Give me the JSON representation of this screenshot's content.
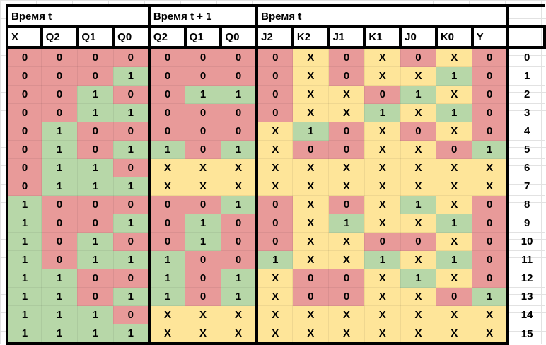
{
  "groups": [
    {
      "label": "Время t",
      "span": 4
    },
    {
      "label": "Время t + 1",
      "span": 3
    },
    {
      "label": "Время t",
      "span": 7
    }
  ],
  "columns": [
    "X",
    "Q2",
    "Q1",
    "Q0",
    "Q2",
    "Q1",
    "Q0",
    "J2",
    "K2",
    "J1",
    "K1",
    "J0",
    "K0",
    "Y"
  ],
  "rows": [
    {
      "index": "0",
      "values": [
        "0",
        "0",
        "0",
        "0",
        "0",
        "0",
        "0",
        "0",
        "X",
        "0",
        "X",
        "0",
        "X",
        "0"
      ]
    },
    {
      "index": "1",
      "values": [
        "0",
        "0",
        "0",
        "1",
        "0",
        "0",
        "0",
        "0",
        "X",
        "0",
        "X",
        "X",
        "1",
        "0"
      ]
    },
    {
      "index": "2",
      "values": [
        "0",
        "0",
        "1",
        "0",
        "0",
        "1",
        "1",
        "0",
        "X",
        "X",
        "0",
        "1",
        "X",
        "0"
      ]
    },
    {
      "index": "3",
      "values": [
        "0",
        "0",
        "1",
        "1",
        "0",
        "0",
        "0",
        "0",
        "X",
        "X",
        "1",
        "X",
        "1",
        "0"
      ]
    },
    {
      "index": "4",
      "values": [
        "0",
        "1",
        "0",
        "0",
        "0",
        "0",
        "0",
        "X",
        "1",
        "0",
        "X",
        "0",
        "X",
        "0"
      ]
    },
    {
      "index": "5",
      "values": [
        "0",
        "1",
        "0",
        "1",
        "1",
        "0",
        "1",
        "X",
        "0",
        "0",
        "X",
        "X",
        "0",
        "1"
      ]
    },
    {
      "index": "6",
      "values": [
        "0",
        "1",
        "1",
        "0",
        "X",
        "X",
        "X",
        "X",
        "X",
        "X",
        "X",
        "X",
        "X",
        "X"
      ]
    },
    {
      "index": "7",
      "values": [
        "0",
        "1",
        "1",
        "1",
        "X",
        "X",
        "X",
        "X",
        "X",
        "X",
        "X",
        "X",
        "X",
        "X"
      ]
    },
    {
      "index": "8",
      "values": [
        "1",
        "0",
        "0",
        "0",
        "0",
        "0",
        "1",
        "0",
        "X",
        "0",
        "X",
        "1",
        "X",
        "0"
      ]
    },
    {
      "index": "9",
      "values": [
        "1",
        "0",
        "0",
        "1",
        "0",
        "1",
        "0",
        "0",
        "X",
        "1",
        "X",
        "X",
        "1",
        "0"
      ]
    },
    {
      "index": "10",
      "values": [
        "1",
        "0",
        "1",
        "0",
        "0",
        "1",
        "0",
        "0",
        "X",
        "X",
        "0",
        "0",
        "X",
        "0"
      ]
    },
    {
      "index": "11",
      "values": [
        "1",
        "0",
        "1",
        "1",
        "1",
        "0",
        "0",
        "1",
        "X",
        "X",
        "1",
        "X",
        "1",
        "0"
      ]
    },
    {
      "index": "12",
      "values": [
        "1",
        "1",
        "0",
        "0",
        "1",
        "0",
        "1",
        "X",
        "0",
        "0",
        "X",
        "1",
        "X",
        "0"
      ]
    },
    {
      "index": "13",
      "values": [
        "1",
        "1",
        "0",
        "1",
        "1",
        "0",
        "1",
        "X",
        "0",
        "0",
        "X",
        "X",
        "0",
        "1"
      ]
    },
    {
      "index": "14",
      "values": [
        "1",
        "1",
        "1",
        "0",
        "X",
        "X",
        "X",
        "X",
        "X",
        "X",
        "X",
        "X",
        "X",
        "X"
      ]
    },
    {
      "index": "15",
      "values": [
        "1",
        "1",
        "1",
        "1",
        "X",
        "X",
        "X",
        "X",
        "X",
        "X",
        "X",
        "X",
        "X",
        "X"
      ]
    }
  ],
  "colors": {
    "0": "#e89a99",
    "1": "#b7d7a8",
    "X": "#fee599"
  }
}
